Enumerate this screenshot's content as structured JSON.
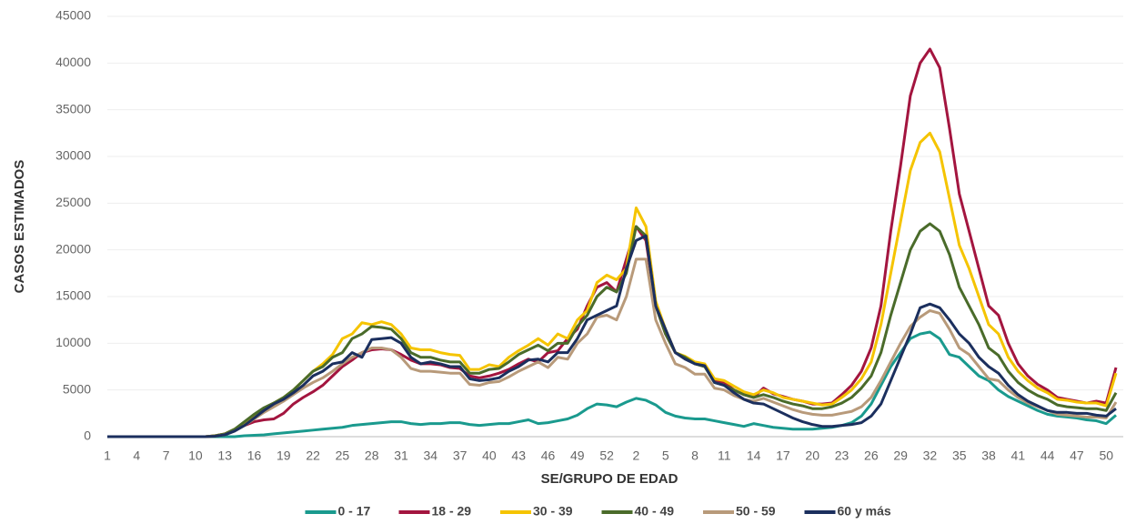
{
  "chart_data": {
    "type": "line",
    "y_label": "CASOS ESTIMADOS",
    "x_label": "SE/GRUPO DE EDAD",
    "categories": [
      1,
      null,
      null,
      4,
      null,
      null,
      7,
      null,
      null,
      10,
      null,
      null,
      13,
      null,
      null,
      16,
      null,
      null,
      19,
      null,
      null,
      22,
      null,
      null,
      25,
      null,
      null,
      28,
      null,
      null,
      31,
      null,
      null,
      34,
      null,
      null,
      37,
      null,
      null,
      40,
      null,
      null,
      43,
      null,
      null,
      46,
      null,
      null,
      49,
      null,
      null,
      52,
      null,
      null,
      2,
      null,
      null,
      5,
      null,
      null,
      8,
      null,
      null,
      11,
      null,
      null,
      14,
      null,
      null,
      17,
      null,
      null,
      20,
      null,
      null,
      23,
      null,
      null,
      26,
      null,
      null,
      29,
      null,
      null,
      32,
      null,
      null,
      35,
      null,
      null,
      38,
      null,
      null,
      41,
      null,
      null,
      44,
      null,
      null,
      47,
      null,
      null,
      50,
      null
    ],
    "ylim": [
      0,
      45000
    ],
    "yticks": [
      0,
      5000,
      10000,
      15000,
      20000,
      25000,
      30000,
      35000,
      40000,
      45000
    ],
    "grid": true,
    "legend": "bottom",
    "series": [
      {
        "name": "0 - 17",
        "color": "#1a9a8e",
        "values": [
          0,
          0,
          0,
          0,
          0,
          0,
          0,
          0,
          0,
          0,
          0,
          0,
          0,
          0,
          100,
          150,
          200,
          300,
          400,
          500,
          600,
          700,
          800,
          900,
          1000,
          1200,
          1300,
          1400,
          1500,
          1600,
          1600,
          1400,
          1300,
          1400,
          1400,
          1500,
          1500,
          1300,
          1200,
          1300,
          1400,
          1400,
          1600,
          1800,
          1400,
          1500,
          1700,
          1900,
          2300,
          3000,
          3500,
          3400,
          3200,
          3700,
          4100,
          3900,
          3400,
          2600,
          2200,
          2000,
          1900,
          1900,
          1700,
          1500,
          1300,
          1100,
          1400,
          1200,
          1000,
          900,
          800,
          800,
          800,
          900,
          1000,
          1200,
          1500,
          2200,
          3500,
          5500,
          7500,
          9000,
          10500,
          11000,
          11200,
          10500,
          8800,
          8500,
          7500,
          6500,
          6000,
          5000,
          4300,
          3800,
          3300,
          2800,
          2400,
          2200,
          2100,
          2000,
          1800,
          1700,
          1400,
          2300
        ]
      },
      {
        "name": "18 - 29",
        "color": "#a3153f",
        "values": [
          0,
          0,
          0,
          0,
          0,
          0,
          0,
          0,
          0,
          0,
          0,
          100,
          300,
          700,
          1200,
          1600,
          1800,
          1900,
          2500,
          3500,
          4200,
          4800,
          5500,
          6500,
          7500,
          8200,
          9000,
          9300,
          9400,
          9300,
          8800,
          8200,
          7800,
          7800,
          7700,
          7400,
          7300,
          6500,
          6300,
          6500,
          6800,
          7200,
          7800,
          8300,
          8000,
          9000,
          9200,
          10500,
          11500,
          14000,
          16000,
          16500,
          15500,
          19000,
          22500,
          21000,
          14000,
          11000,
          9000,
          8500,
          7800,
          7600,
          6000,
          5800,
          5000,
          4500,
          4200,
          5200,
          4600,
          4300,
          4000,
          3800,
          3500,
          3500,
          3600,
          4500,
          5500,
          7000,
          9500,
          14000,
          22000,
          29000,
          36500,
          40000,
          41500,
          39500,
          33000,
          26000,
          22000,
          18000,
          14000,
          13000,
          10000,
          7800,
          6500,
          5600,
          5000,
          4200,
          4000,
          3800,
          3600,
          3800,
          3600,
          7400
        ]
      },
      {
        "name": "30 - 39",
        "color": "#f5c400",
        "values": [
          0,
          0,
          0,
          0,
          0,
          0,
          0,
          0,
          0,
          0,
          0,
          100,
          300,
          800,
          1500,
          2200,
          3000,
          3600,
          4200,
          5000,
          6000,
          7000,
          7800,
          8800,
          10500,
          11000,
          12200,
          12000,
          12300,
          12000,
          11000,
          9500,
          9300,
          9300,
          9000,
          8800,
          8700,
          7200,
          7200,
          7700,
          7500,
          8500,
          9200,
          9800,
          10500,
          9800,
          11000,
          10500,
          12500,
          13500,
          16500,
          17300,
          16800,
          18000,
          24500,
          22500,
          14500,
          11500,
          9000,
          8600,
          8000,
          7800,
          6200,
          6000,
          5400,
          4800,
          4500,
          5000,
          4700,
          4200,
          4000,
          3800,
          3600,
          3400,
          3500,
          4200,
          5000,
          6200,
          8000,
          12000,
          17500,
          23000,
          28500,
          31500,
          32500,
          30500,
          25500,
          20500,
          18000,
          15000,
          12000,
          11000,
          8500,
          7000,
          6000,
          5200,
          4700,
          4000,
          3900,
          3700,
          3600,
          3600,
          3300,
          6800
        ]
      },
      {
        "name": "40 - 49",
        "color": "#4a6b2a",
        "values": [
          0,
          0,
          0,
          0,
          0,
          0,
          0,
          0,
          0,
          0,
          0,
          100,
          300,
          800,
          1600,
          2400,
          3100,
          3600,
          4200,
          5000,
          6000,
          7000,
          7500,
          8500,
          9000,
          10500,
          11000,
          11800,
          11700,
          11500,
          10500,
          9000,
          8500,
          8500,
          8200,
          8000,
          8000,
          6800,
          6800,
          7200,
          7300,
          8000,
          8800,
          9300,
          9800,
          9200,
          10000,
          10000,
          11800,
          13000,
          15000,
          16000,
          15500,
          17500,
          22500,
          21500,
          14000,
          11000,
          9000,
          8500,
          7800,
          7500,
          5800,
          5500,
          5000,
          4500,
          4200,
          4500,
          4200,
          3800,
          3500,
          3300,
          3000,
          3000,
          3200,
          3600,
          4200,
          5200,
          6500,
          9000,
          13000,
          16500,
          20000,
          22000,
          22800,
          22000,
          19500,
          16000,
          14000,
          12000,
          9500,
          8700,
          7000,
          5800,
          5000,
          4400,
          4000,
          3400,
          3200,
          3100,
          3000,
          3000,
          2800,
          4700
        ]
      },
      {
        "name": "50 - 59",
        "color": "#b89a7a",
        "values": [
          0,
          0,
          0,
          0,
          0,
          0,
          0,
          0,
          0,
          0,
          0,
          50,
          200,
          600,
          1200,
          1900,
          2600,
          3200,
          3800,
          4500,
          5200,
          5800,
          6300,
          7000,
          7800,
          8500,
          9000,
          9500,
          9500,
          9300,
          8500,
          7300,
          7000,
          7000,
          6900,
          6800,
          6800,
          5600,
          5500,
          5800,
          5900,
          6400,
          7000,
          7500,
          8000,
          7400,
          8500,
          8300,
          10000,
          11000,
          12800,
          13000,
          12500,
          15000,
          19000,
          19000,
          12500,
          10000,
          7800,
          7400,
          6700,
          6700,
          5200,
          5000,
          4400,
          4000,
          3800,
          4100,
          3700,
          3300,
          2900,
          2600,
          2400,
          2300,
          2300,
          2500,
          2700,
          3200,
          4200,
          6000,
          8000,
          10000,
          11800,
          12800,
          13500,
          13200,
          11500,
          9500,
          8800,
          7500,
          6200,
          6000,
          5000,
          4200,
          3600,
          3200,
          2800,
          2400,
          2300,
          2200,
          2100,
          2100,
          2000,
          3700
        ]
      },
      {
        "name": "60 y más",
        "color": "#1b2f5e",
        "values": [
          0,
          0,
          0,
          0,
          0,
          0,
          0,
          0,
          0,
          0,
          0,
          50,
          200,
          600,
          1200,
          2000,
          2800,
          3500,
          4000,
          4700,
          5500,
          6500,
          7000,
          7800,
          8000,
          9000,
          8500,
          10400,
          10500,
          10600,
          10000,
          8500,
          7800,
          8000,
          7800,
          7500,
          7500,
          6200,
          6000,
          6100,
          6300,
          7000,
          7500,
          8200,
          8300,
          8000,
          9000,
          9000,
          10500,
          12500,
          13000,
          13500,
          14000,
          18000,
          21000,
          21500,
          14000,
          11500,
          9000,
          8300,
          7800,
          7600,
          5800,
          5500,
          4700,
          4000,
          3600,
          3500,
          3000,
          2500,
          2000,
          1600,
          1300,
          1100,
          1100,
          1200,
          1300,
          1500,
          2200,
          3500,
          6000,
          8500,
          11000,
          13800,
          14200,
          13800,
          12500,
          11000,
          10000,
          8500,
          7500,
          6800,
          5500,
          4500,
          3800,
          3300,
          2800,
          2600,
          2600,
          2500,
          2500,
          2300,
          2200,
          3000
        ]
      }
    ]
  }
}
